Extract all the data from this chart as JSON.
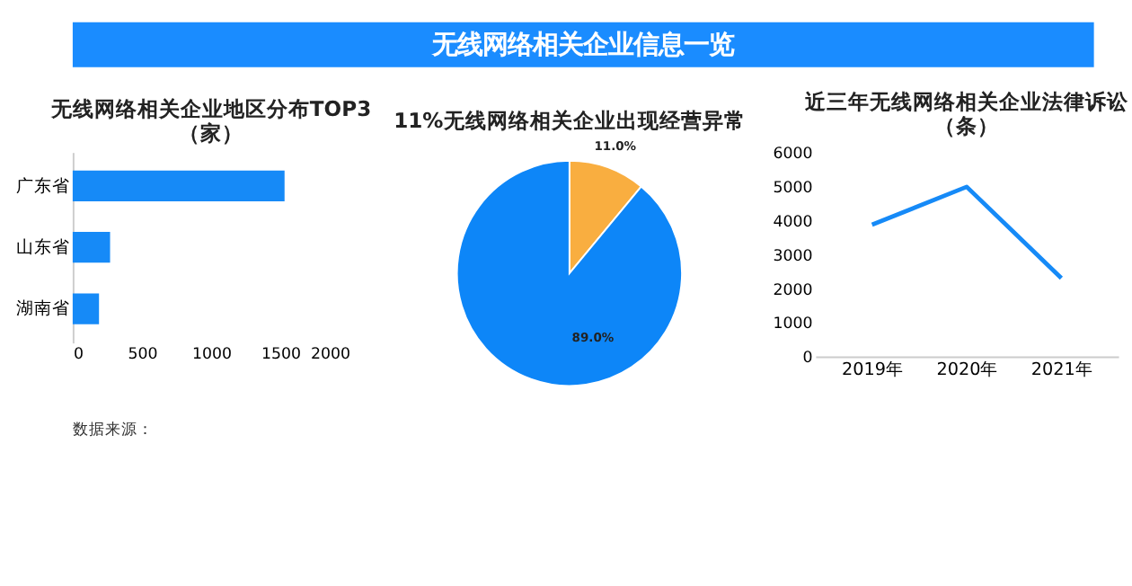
{
  "chart_data": [
    {
      "type": "bar",
      "orientation": "horizontal",
      "title": "无线网络相关企业地区分布TOP3（家）",
      "categories": [
        "广东省",
        "山东省",
        "湖南省"
      ],
      "values": [
        1530,
        270,
        190
      ],
      "color": "#168af7",
      "xlim": [
        0,
        2000
      ],
      "xticks": [
        0,
        500,
        1000,
        1500,
        2000
      ],
      "grid": false,
      "annotations": [
        "无线网络相关企业信息一览",
        "数据来源："
      ]
    },
    {
      "type": "pie",
      "title": "11%无线网络相关企业出现经营异常",
      "categories": [
        null,
        null
      ],
      "values": [
        11,
        89
      ],
      "colors": [
        "#f9ae40",
        "#0d86f8"
      ],
      "value_labels": [
        "11.0%",
        "89.0%"
      ]
    },
    {
      "type": "line",
      "title": "近三年无线网络相关企业法律诉讼（条）",
      "categories": [
        "2019年",
        "2020年",
        "2021年"
      ],
      "series": [
        {
          "color": "#168af7",
          "values": [
            3870,
            4980,
            2300
          ]
        }
      ],
      "ylim": [
        0,
        6000
      ],
      "yticks": [
        0,
        1000,
        2000,
        3000,
        4000,
        5000,
        6000
      ],
      "grid": false,
      "marker": "none",
      "line_style": "solid"
    }
  ]
}
